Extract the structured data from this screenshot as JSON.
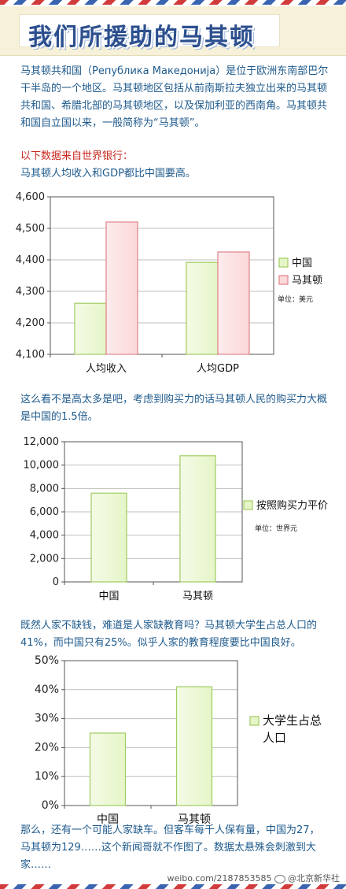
{
  "page": {
    "title": "我们所援助的马其顿",
    "intro": "马其顿共和国（Република Македонија）是位于欧洲东南部巴尔干半岛的一个地区。马其顿地区包括从前南斯拉夫独立出来的马其顿共和国、希腊北部的马其顿地区，以及保加利亚的西南角。马其顿共和国自立国以来，一般简称为“马其顿”。",
    "source_note": "以下数据来自世界银行：",
    "note1": "马其顿人均收入和GDP都比中国要高。",
    "para2": "这么看不是高太多是吧，考虑到购买力的话马其顿人民的购买力大概是中国的1.5倍。",
    "para3": "既然人家不缺钱，难道是人家缺教育吗？马其顿大学生占总人口的41%，而中国只有25%。似乎人家的教育程度要比中国良好。",
    "footer": "那么，还有一个可能人家缺车。但客车每千人保有量，中国为27，马其顿为129……这个新闻哥就不作图了。数据太悬殊会刺激到大家……",
    "watermark": "weibo.com/2187853585",
    "watermark_handle": "@北京新华社"
  },
  "colors": {
    "china_fill": "#e6f5c8",
    "china_stroke": "#9fcc62",
    "mk_fill": "#fbd8da",
    "mk_stroke": "#e0828a",
    "grid": "#bfbfbf",
    "axis": "#555555",
    "text_blue": "#1e5a8c",
    "text_red": "#c8281e"
  },
  "chart_data": [
    {
      "type": "bar",
      "categories": [
        "人均收入",
        "人均GDP"
      ],
      "series": [
        {
          "name": "中国",
          "values": [
            4262,
            4392
          ]
        },
        {
          "name": "马其顿",
          "values": [
            4520,
            4425
          ]
        }
      ],
      "ylim": [
        4100,
        4600
      ],
      "yticks": [
        "4,100",
        "4,200",
        "4,300",
        "4,400",
        "4,500",
        "4,600"
      ],
      "unit": "单位：美元",
      "legend_position": "right",
      "grid": true
    },
    {
      "type": "bar",
      "categories": [
        "中国",
        "马其顿"
      ],
      "series": [
        {
          "name": "按照购买力平价",
          "values": [
            7600,
            10800
          ]
        }
      ],
      "ylim": [
        0,
        12000
      ],
      "yticks": [
        "0",
        "2,000",
        "4,000",
        "6,000",
        "8,000",
        "10,000",
        "12,000"
      ],
      "unit": "单位：世界元",
      "legend_position": "right",
      "grid": true
    },
    {
      "type": "bar",
      "categories": [
        "中国",
        "马其顿"
      ],
      "series": [
        {
          "name": "大学生占总人口",
          "values": [
            25,
            41
          ]
        }
      ],
      "ylim": [
        0,
        50
      ],
      "yticks": [
        "0%",
        "10%",
        "20%",
        "30%",
        "40%",
        "50%"
      ],
      "unit": "",
      "legend_position": "right",
      "grid": true
    }
  ]
}
